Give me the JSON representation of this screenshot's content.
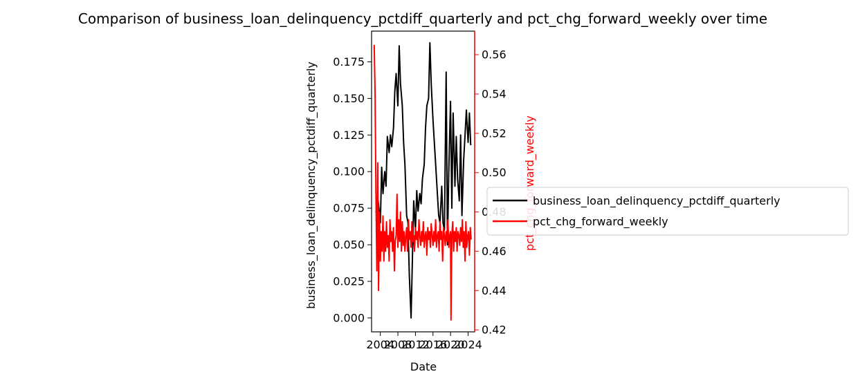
{
  "chart_data": {
    "type": "line",
    "title": "Comparison of business_loan_delinquency_pctdiff_quarterly and pct_chg_forward_weekly over time",
    "xlabel": "Date",
    "x_ticks": [
      "2004",
      "2008",
      "2012",
      "2016",
      "2020",
      "2024"
    ],
    "xlim": [
      2002.0,
      2025.5
    ],
    "y_left": {
      "label": "business_loan_delinquency_pctdiff_quarterly",
      "ticks": [
        "0.000",
        "0.025",
        "0.050",
        "0.075",
        "0.100",
        "0.125",
        "0.150",
        "0.175"
      ],
      "lim": [
        -0.0095,
        0.196
      ],
      "color": "#000000"
    },
    "y_right": {
      "label": "pct_chg_forward_weekly",
      "ticks": [
        "0.42",
        "0.44",
        "0.46",
        "0.48",
        "0.50",
        "0.52",
        "0.54",
        "0.56"
      ],
      "lim": [
        0.419,
        0.572
      ],
      "color": "#ff0000"
    },
    "legend": {
      "placement": "right-outside"
    },
    "series": [
      {
        "name": "business_loan_delinquency_pctdiff_quarterly",
        "axis": "left",
        "color": "#000000",
        "x": [
          2003.0,
          2003.5,
          2004.0,
          2004.3,
          2004.6,
          2005.0,
          2005.3,
          2005.6,
          2006.0,
          2006.3,
          2006.6,
          2007.0,
          2007.3,
          2007.6,
          2008.0,
          2008.3,
          2008.6,
          2009.0,
          2009.3,
          2009.6,
          2010.0,
          2010.3,
          2010.6,
          2011.0,
          2011.3,
          2011.6,
          2012.0,
          2012.3,
          2012.6,
          2013.0,
          2013.3,
          2013.6,
          2014.0,
          2014.3,
          2014.6,
          2015.0,
          2015.3,
          2015.6,
          2016.0,
          2016.3,
          2016.6,
          2017.0,
          2017.3,
          2017.6,
          2018.0,
          2018.3,
          2018.6,
          2019.0,
          2019.3,
          2019.6,
          2020.0,
          2020.3,
          2020.6,
          2021.0,
          2021.3,
          2021.6,
          2022.0,
          2022.3,
          2022.6,
          2023.0,
          2023.3,
          2023.6,
          2024.0,
          2024.3,
          2024.6
        ],
        "values": [
          0.072,
          0.08,
          0.065,
          0.103,
          0.085,
          0.1,
          0.09,
          0.124,
          0.113,
          0.125,
          0.117,
          0.13,
          0.155,
          0.167,
          0.145,
          0.186,
          0.16,
          0.145,
          0.12,
          0.105,
          0.07,
          0.065,
          0.03,
          0.0,
          0.04,
          0.08,
          0.06,
          0.087,
          0.073,
          0.085,
          0.078,
          0.095,
          0.105,
          0.13,
          0.145,
          0.15,
          0.188,
          0.16,
          0.135,
          0.12,
          0.105,
          0.085,
          0.07,
          0.065,
          0.09,
          0.065,
          0.06,
          0.168,
          0.05,
          0.1,
          0.148,
          0.075,
          0.14,
          0.09,
          0.124,
          0.095,
          0.08,
          0.125,
          0.07,
          0.108,
          0.125,
          0.142,
          0.12,
          0.14,
          0.118
        ]
      },
      {
        "name": "pct_chg_forward_weekly",
        "axis": "right",
        "color": "#ff0000",
        "x": [
          2002.6,
          2002.8,
          2003.0,
          2003.2,
          2003.4,
          2003.6,
          2003.8,
          2004.0,
          2004.2,
          2004.4,
          2004.6,
          2004.8,
          2005.0,
          2005.2,
          2005.4,
          2005.6,
          2005.8,
          2006.0,
          2006.2,
          2006.4,
          2006.6,
          2006.8,
          2007.0,
          2007.2,
          2007.4,
          2007.6,
          2007.8,
          2008.0,
          2008.2,
          2008.4,
          2008.6,
          2008.8,
          2009.0,
          2009.2,
          2009.4,
          2009.6,
          2009.8,
          2010.0,
          2010.2,
          2010.4,
          2010.6,
          2010.8,
          2011.0,
          2011.2,
          2011.4,
          2011.6,
          2011.8,
          2012.0,
          2012.2,
          2012.4,
          2012.6,
          2012.8,
          2013.0,
          2013.2,
          2013.4,
          2013.6,
          2013.8,
          2014.0,
          2014.2,
          2014.4,
          2014.6,
          2014.8,
          2015.0,
          2015.2,
          2015.4,
          2015.6,
          2015.8,
          2016.0,
          2016.2,
          2016.4,
          2016.6,
          2016.8,
          2017.0,
          2017.2,
          2017.4,
          2017.6,
          2017.8,
          2018.0,
          2018.2,
          2018.4,
          2018.6,
          2018.8,
          2019.0,
          2019.2,
          2019.4,
          2019.6,
          2019.8,
          2020.0,
          2020.1,
          2020.3,
          2020.5,
          2020.7,
          2020.9,
          2021.1,
          2021.3,
          2021.5,
          2021.7,
          2021.9,
          2022.1,
          2022.3,
          2022.5,
          2022.7,
          2022.9,
          2023.1,
          2023.3,
          2023.5,
          2023.7,
          2023.9,
          2024.1,
          2024.3,
          2024.5,
          2024.7
        ],
        "values": [
          0.565,
          0.54,
          0.49,
          0.45,
          0.505,
          0.44,
          0.48,
          0.455,
          0.47,
          0.46,
          0.478,
          0.455,
          0.47,
          0.46,
          0.475,
          0.462,
          0.468,
          0.455,
          0.476,
          0.465,
          0.47,
          0.46,
          0.472,
          0.45,
          0.465,
          0.468,
          0.489,
          0.462,
          0.476,
          0.465,
          0.48,
          0.46,
          0.475,
          0.463,
          0.47,
          0.46,
          0.468,
          0.472,
          0.46,
          0.476,
          0.466,
          0.47,
          0.462,
          0.475,
          0.465,
          0.468,
          0.46,
          0.472,
          0.466,
          0.47,
          0.462,
          0.476,
          0.468,
          0.463,
          0.47,
          0.465,
          0.475,
          0.462,
          0.468,
          0.47,
          0.458,
          0.472,
          0.466,
          0.47,
          0.462,
          0.474,
          0.468,
          0.463,
          0.47,
          0.465,
          0.476,
          0.462,
          0.468,
          0.47,
          0.46,
          0.475,
          0.466,
          0.47,
          0.455,
          0.472,
          0.468,
          0.463,
          0.47,
          0.465,
          0.476,
          0.462,
          0.468,
          0.47,
          0.425,
          0.468,
          0.475,
          0.46,
          0.47,
          0.465,
          0.472,
          0.46,
          0.47,
          0.468,
          0.463,
          0.472,
          0.465,
          0.476,
          0.462,
          0.47,
          0.455,
          0.475,
          0.462,
          0.468,
          0.47,
          0.458,
          0.472,
          0.466
        ]
      }
    ]
  }
}
